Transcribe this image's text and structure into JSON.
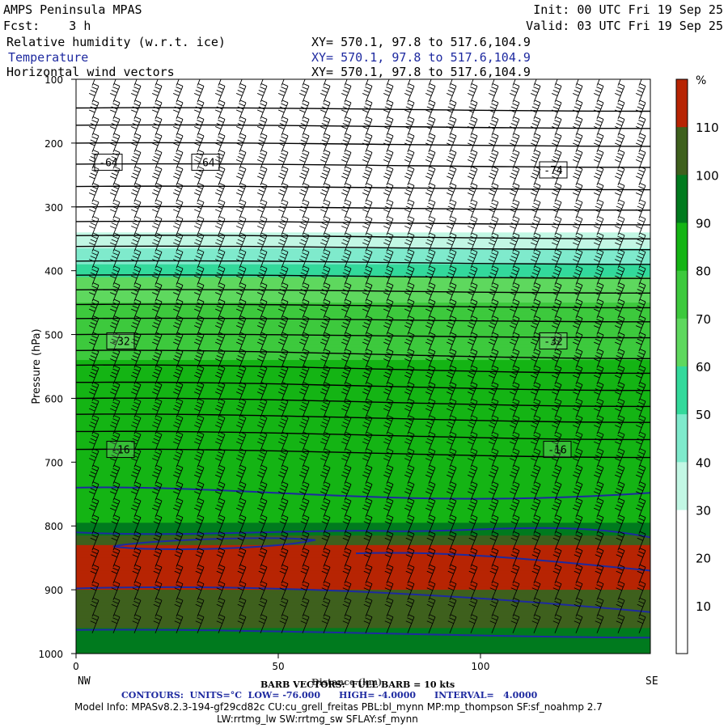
{
  "header": {
    "app_title": "AMPS Peninsula MPAS",
    "init": "Init: 00 UTC Fri 19 Sep 25",
    "fcst": "Fcst:    3 h",
    "valid": "Valid: 03 UTC Fri 19 Sep 25",
    "field1": "Relative humidity (w.r.t. ice)",
    "field2": "Temperature",
    "field3": "Horizontal wind vectors",
    "xy": "XY= 570.1, 97.8 to 517.6,104.9"
  },
  "footer": {
    "xlabel": "Distance (km)",
    "barb_note": "BARB VECTORS:  FULL BARB = 10 kts",
    "contours": "CONTOURS:  UNITS=°C  LOW= -76.000      HIGH= -4.0000      INTERVAL=   4.0000",
    "model_info": "Model Info: MPASv8.2.3-194-gf29cd82c CU:cu_grell_freitas PBL:bl_mynn MP:mp_thompson SF:sf_noahmp 2.7",
    "model_info2": "LW:rrtmg_lw SW:rrtmg_sw SFLAY:sf_mynn",
    "left_end": "NW",
    "right_end": "SE"
  },
  "colors": {
    "rh_fill": [
      "#ffffff",
      "#ffffff",
      "#ffffff",
      "#c2f7e4",
      "#7feacc",
      "#33d99b",
      "#5ed85e",
      "#3dc93d",
      "#14b414",
      "#007a1e",
      "#3e601d",
      "#b72403"
    ],
    "temp_line": "#1e2aa0",
    "isobar": "#000000"
  },
  "chart_data": {
    "type": "heatmap",
    "title": "Relative humidity (w.r.t. ice)",
    "xlabel": "Distance (km)",
    "ylabel": "Pressure (hPa)",
    "xlim": [
      0,
      142
    ],
    "ylim": [
      1000,
      100
    ],
    "x_ticks": [
      0,
      50,
      100
    ],
    "y_ticks": [
      100,
      200,
      300,
      400,
      500,
      600,
      700,
      800,
      900,
      1000
    ],
    "colorbar": {
      "unit": "%",
      "levels": [
        10,
        20,
        30,
        40,
        50,
        60,
        70,
        80,
        90,
        100,
        110
      ]
    },
    "rh_profile": [
      {
        "p": 100,
        "rh": 5
      },
      {
        "p": 330,
        "rh": 25
      },
      {
        "p": 350,
        "rh": 35
      },
      {
        "p": 380,
        "rh": 45
      },
      {
        "p": 420,
        "rh": 65
      },
      {
        "p": 480,
        "rh": 75
      },
      {
        "p": 600,
        "rh": 85
      },
      {
        "p": 780,
        "rh": 85
      },
      {
        "p": 810,
        "rh": 95
      },
      {
        "p": 840,
        "rh": 115
      },
      {
        "p": 880,
        "rh": 115
      },
      {
        "p": 920,
        "rh": 105
      },
      {
        "p": 1000,
        "rh": 95
      }
    ],
    "temperature_labels": [
      {
        "x": 8,
        "p": 230,
        "label": "-64"
      },
      {
        "x": 32,
        "p": 230,
        "label": "-64"
      },
      {
        "x": 118,
        "p": 242,
        "label": "-74"
      },
      {
        "x": 11,
        "p": 510,
        "label": "-32"
      },
      {
        "x": 118,
        "p": 510,
        "label": "-32"
      },
      {
        "x": 11,
        "p": 680,
        "label": "-16"
      },
      {
        "x": 119,
        "p": 680,
        "label": "-16"
      }
    ]
  }
}
